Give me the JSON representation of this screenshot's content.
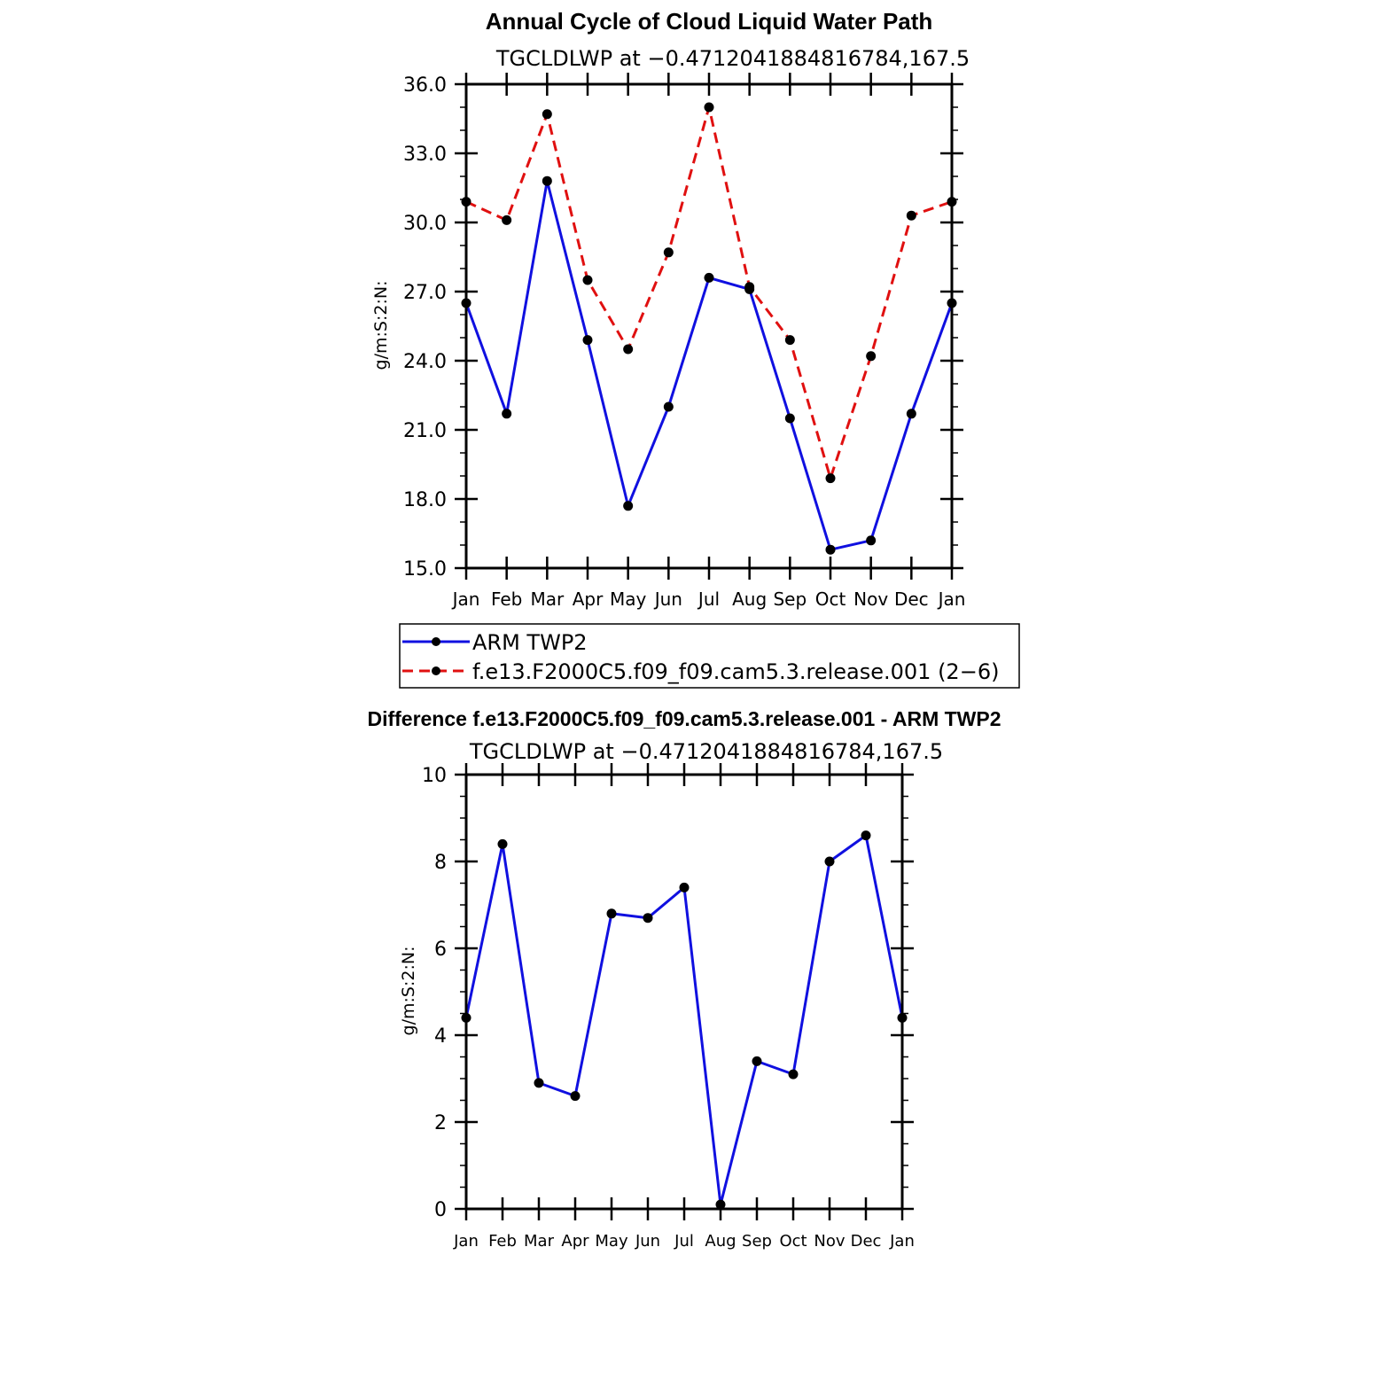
{
  "colors": {
    "series_obs": "#1010e0",
    "series_model": "#e01010",
    "marker": "#000000"
  },
  "chart_data": [
    {
      "type": "line",
      "title": "Annual Cycle of Cloud Liquid Water Path",
      "subtitle": "TGCLDLWP  at  −0.4712041884816784,167.5",
      "ylabel": "g/m:S:2:N:",
      "xlabel": "",
      "categories": [
        "Jan",
        "Feb",
        "Mar",
        "Apr",
        "May",
        "Jun",
        "Jul",
        "Aug",
        "Sep",
        "Oct",
        "Nov",
        "Dec",
        "Jan"
      ],
      "ylim": [
        15.0,
        36.0
      ],
      "yticks": [
        "15.0",
        "18.0",
        "21.0",
        "24.0",
        "27.0",
        "30.0",
        "33.0",
        "36.0"
      ],
      "legend_position": "bottom",
      "series": [
        {
          "name": "ARM  TWP2",
          "style": "solid",
          "values": [
            26.5,
            21.7,
            31.8,
            24.9,
            17.7,
            22.0,
            27.6,
            27.1,
            21.5,
            15.8,
            16.2,
            21.7,
            26.5
          ]
        },
        {
          "name": "f.e13.F2000C5.f09_f09.cam5.3.release.001  (2−6)",
          "style": "dashed",
          "values": [
            30.9,
            30.1,
            34.7,
            27.5,
            24.5,
            28.7,
            35.0,
            27.2,
            24.9,
            18.9,
            24.2,
            30.3,
            30.9
          ]
        }
      ]
    },
    {
      "type": "line",
      "title": "Difference f.e13.F2000C5.f09_f09.cam5.3.release.001 - ARM TWP2",
      "subtitle": "TGCLDLWP  at  −0.4712041884816784,167.5",
      "ylabel": "g/m:S:2:N:",
      "xlabel": "",
      "categories": [
        "Jan",
        "Feb",
        "Mar",
        "Apr",
        "May",
        "Jun",
        "Jul",
        "Aug",
        "Sep",
        "Oct",
        "Nov",
        "Dec",
        "Jan"
      ],
      "ylim": [
        0,
        10
      ],
      "yticks": [
        "0",
        "2",
        "4",
        "6",
        "8",
        "10"
      ],
      "series": [
        {
          "name": "Difference",
          "style": "solid",
          "values": [
            4.4,
            8.4,
            2.9,
            2.6,
            6.8,
            6.7,
            7.4,
            0.1,
            3.4,
            3.1,
            8.0,
            8.6,
            4.4
          ]
        }
      ]
    }
  ]
}
